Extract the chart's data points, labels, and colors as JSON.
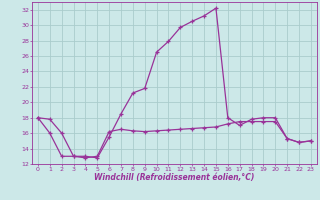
{
  "xlabel": "Windchill (Refroidissement éolien,°C)",
  "bg_color": "#cce8e8",
  "grid_color": "#aacccc",
  "line_color": "#993399",
  "xlim": [
    -0.5,
    23.5
  ],
  "ylim": [
    12,
    33
  ],
  "xtick_labels": [
    "0",
    "1",
    "2",
    "3",
    "4",
    "5",
    "6",
    "7",
    "8",
    "9",
    "10",
    "11",
    "12",
    "13",
    "14",
    "15",
    "16",
    "17",
    "18",
    "19",
    "20",
    "21",
    "22",
    "23"
  ],
  "xtick_vals": [
    0,
    1,
    2,
    3,
    4,
    5,
    6,
    7,
    8,
    9,
    10,
    11,
    12,
    13,
    14,
    15,
    16,
    17,
    18,
    19,
    20,
    21,
    22,
    23
  ],
  "ytick_vals": [
    12,
    14,
    16,
    18,
    20,
    22,
    24,
    26,
    28,
    30,
    32
  ],
  "curve1_x": [
    0,
    1,
    2,
    3,
    4,
    5,
    6,
    7,
    8,
    9,
    10,
    11,
    12,
    13,
    14,
    15,
    16,
    17,
    18,
    19,
    20,
    21,
    22,
    23
  ],
  "curve1_y": [
    18.0,
    17.8,
    16.0,
    13.0,
    13.0,
    12.8,
    15.5,
    18.5,
    21.2,
    21.8,
    26.5,
    27.9,
    29.7,
    30.5,
    31.2,
    32.2,
    18.0,
    17.0,
    17.8,
    18.0,
    18.0,
    15.3,
    14.8,
    15.0
  ],
  "curve2_x": [
    0,
    1,
    2,
    3,
    4,
    5,
    6,
    7,
    8,
    9,
    10,
    11,
    12,
    13,
    14,
    15,
    16,
    17,
    18,
    19,
    20,
    21,
    22,
    23
  ],
  "curve2_y": [
    18.0,
    16.0,
    13.0,
    13.0,
    12.8,
    13.0,
    16.2,
    16.5,
    16.3,
    16.2,
    16.3,
    16.4,
    16.5,
    16.6,
    16.7,
    16.8,
    17.2,
    17.5,
    17.5,
    17.5,
    17.5,
    15.3,
    14.8,
    15.0
  ]
}
